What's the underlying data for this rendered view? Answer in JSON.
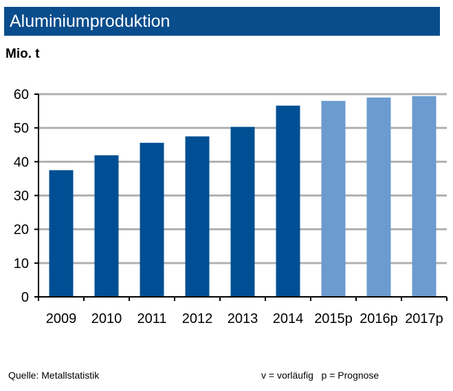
{
  "chart_data": {
    "type": "bar",
    "title": "Aluminiumproduktion",
    "ylabel": "Mio. t",
    "xlabel": "",
    "categories": [
      "2009",
      "2010",
      "2011",
      "2012",
      "2013",
      "2014",
      "2015p",
      "2016p",
      "2017p"
    ],
    "values": [
      37.5,
      41.9,
      45.6,
      47.5,
      50.3,
      56.6,
      58.0,
      59.0,
      59.4
    ],
    "kinds": [
      "actual",
      "actual",
      "actual",
      "actual",
      "actual",
      "actual",
      "forecast",
      "forecast",
      "forecast"
    ],
    "ylim": [
      0,
      60
    ],
    "yticks": [
      0,
      10,
      20,
      30,
      40,
      50,
      60
    ],
    "grid": true,
    "colors": {
      "actual": "#004f94",
      "forecast": "#6b9bcf",
      "grid": "#b0b0b0",
      "title_bg": "#0a4d8c"
    }
  },
  "footer": {
    "source": "Quelle:  Metallstatistik",
    "legend": "v = vorläufig   p = Prognose"
  }
}
